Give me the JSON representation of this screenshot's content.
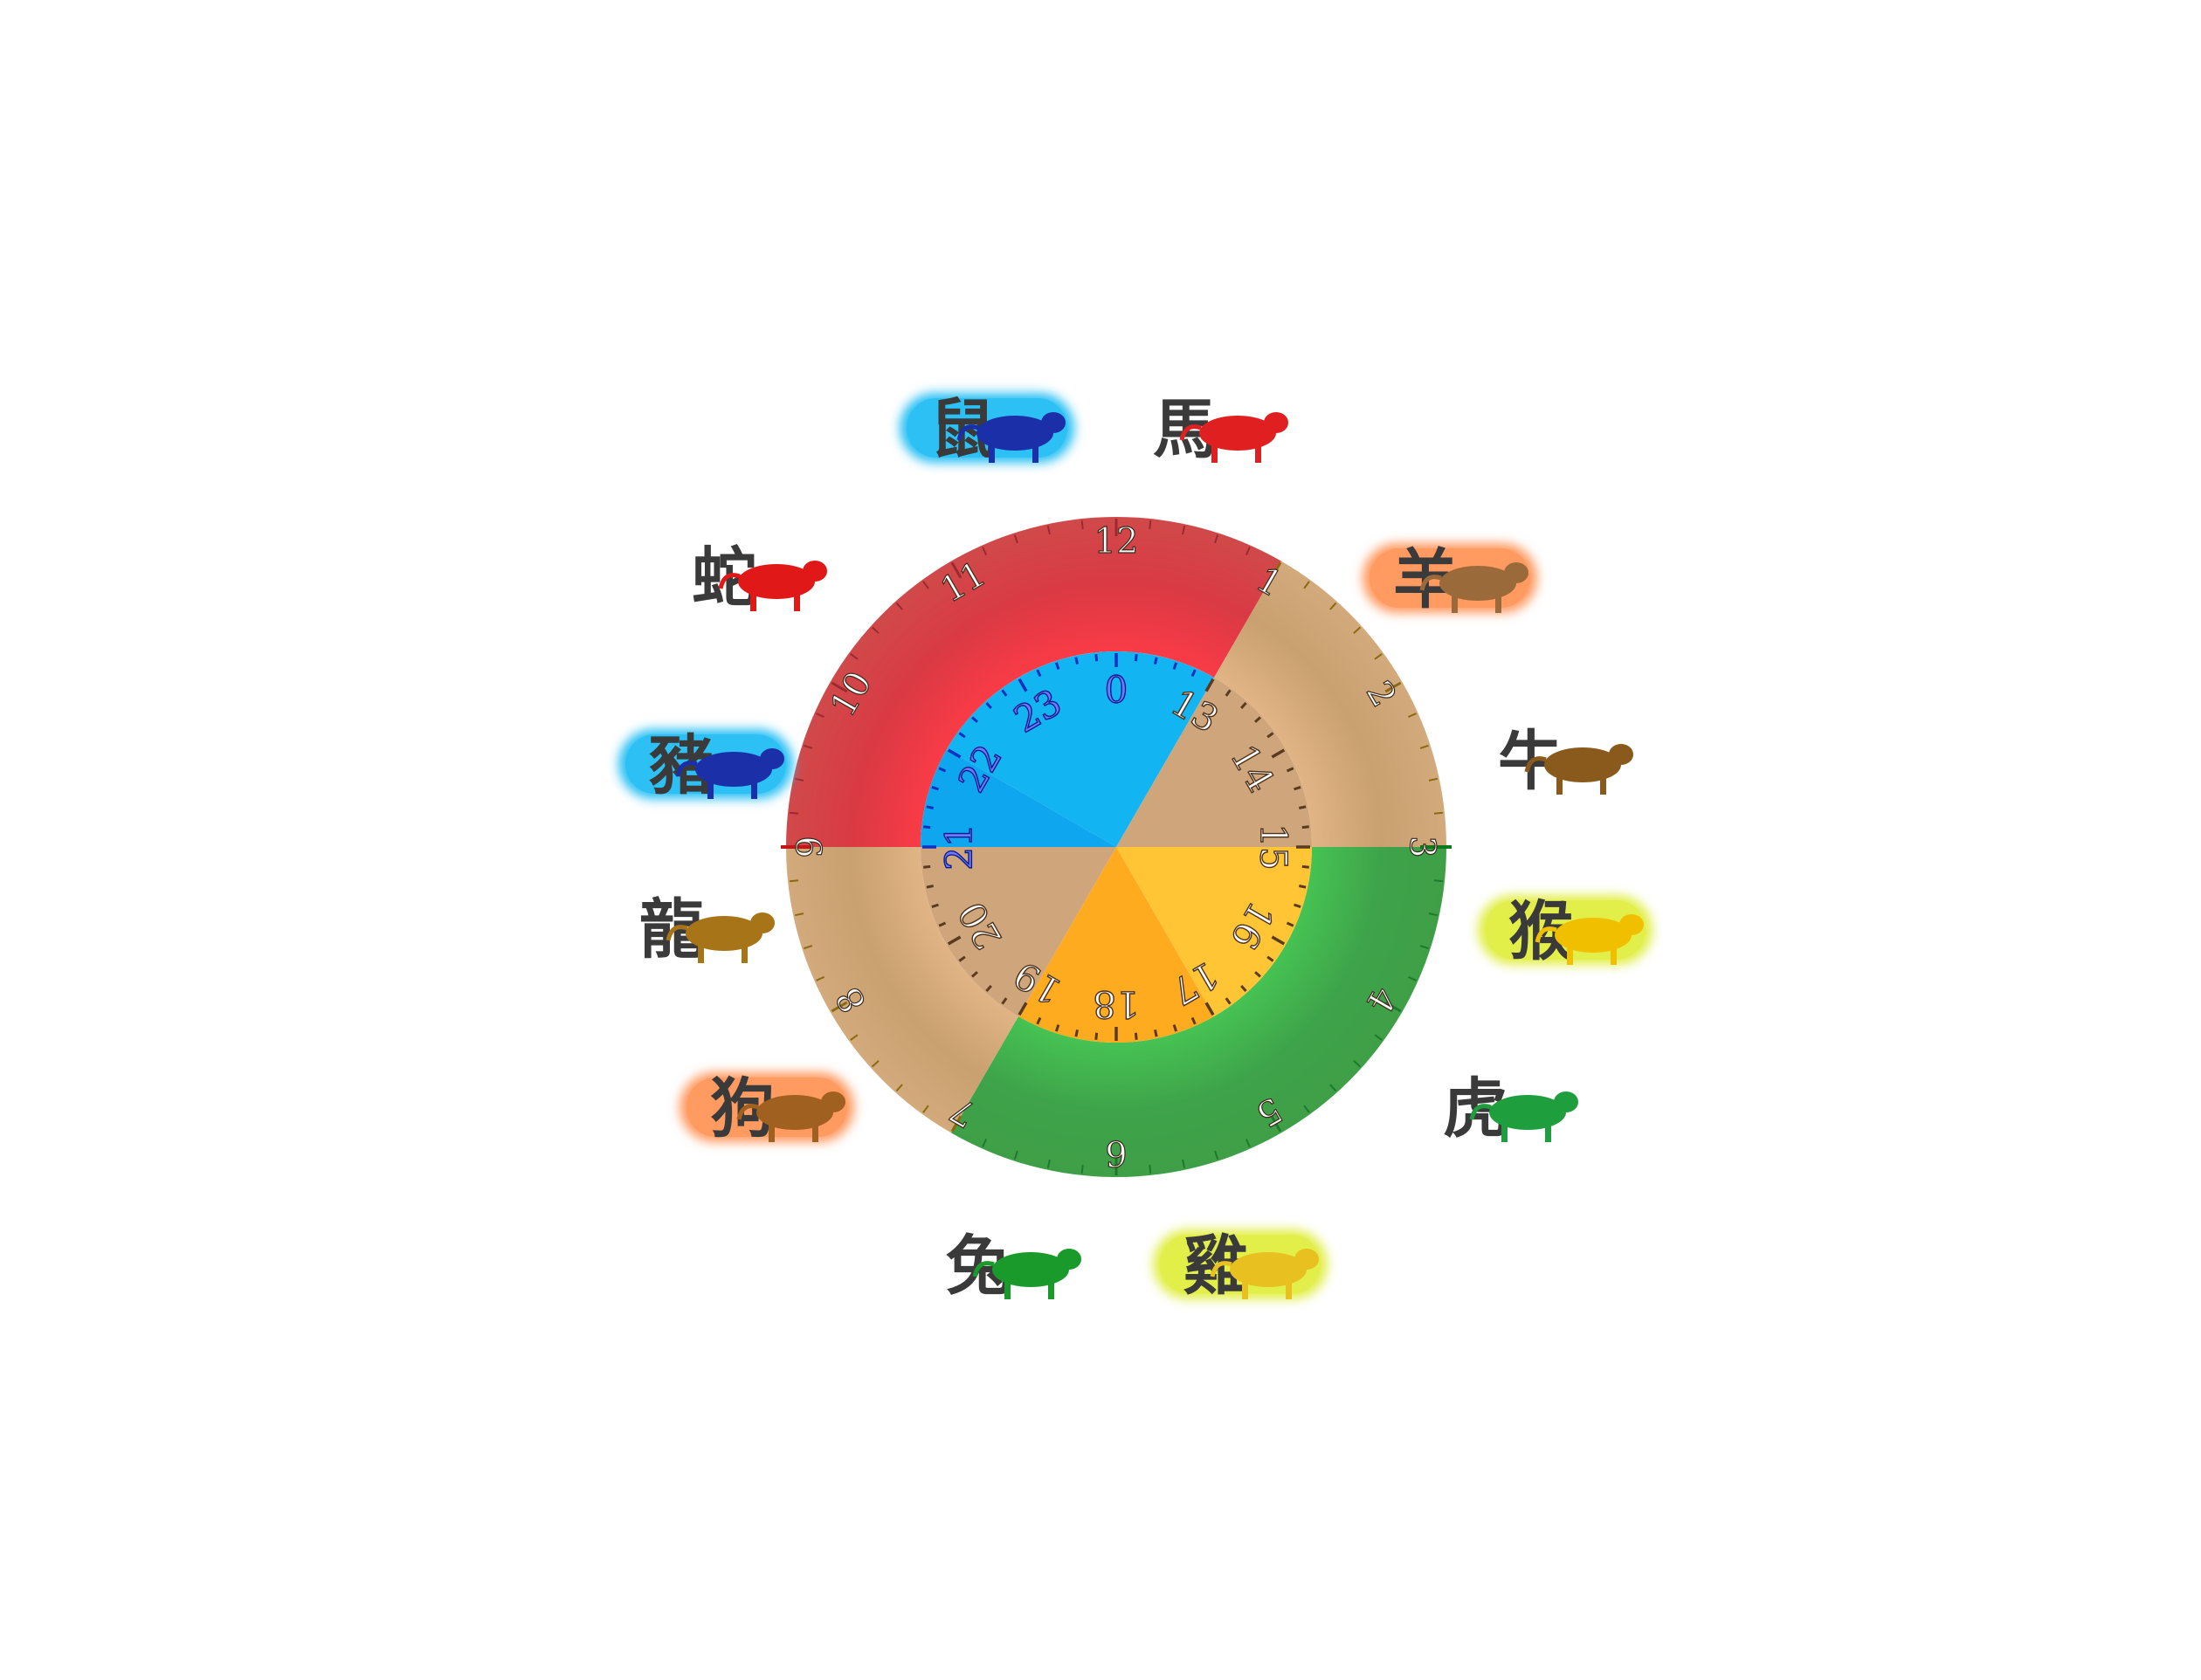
{
  "outer_numbers": [
    "12",
    "1",
    "2",
    "3",
    "4",
    "5",
    "6",
    "7",
    "8",
    "9",
    "10",
    "11"
  ],
  "inner_numbers": [
    "0",
    "13",
    "14",
    "15",
    "16",
    "17",
    "18",
    "19",
    "20",
    "21",
    "22",
    "23"
  ],
  "colors": {
    "red": "#d93a44",
    "tan": "#c9a070",
    "green": "#3ea34a",
    "inner_blue": "#12b4f2",
    "inner_tan": "#cfa57c",
    "inner_orange": "#ffba2a",
    "badge_blue": "#2cc0f4",
    "badge_orange": "#ff9a60",
    "badge_yellow": "#e2ee4a"
  },
  "zodiac": [
    {
      "char": "鼠",
      "animal": "rat-icon",
      "animal_color": "#1b2fa8",
      "badge": "blue"
    },
    {
      "char": "馬",
      "animal": "horse-icon",
      "animal_color": "#e02020",
      "badge": "none"
    },
    {
      "char": "羊",
      "animal": "goat-icon",
      "animal_color": "#9a6a3a",
      "badge": "orange"
    },
    {
      "char": "牛",
      "animal": "ox-icon",
      "animal_color": "#8a5a1c",
      "badge": "none"
    },
    {
      "char": "猴",
      "animal": "monkey-icon",
      "animal_color": "#f0c000",
      "badge": "yellow"
    },
    {
      "char": "虎",
      "animal": "tiger-icon",
      "animal_color": "#1e9e3c",
      "badge": "none"
    },
    {
      "char": "雞",
      "animal": "rooster-icon",
      "animal_color": "#e8c020",
      "badge": "yellow"
    },
    {
      "char": "兔",
      "animal": "rabbit-icon",
      "animal_color": "#1a9a2a",
      "badge": "none"
    },
    {
      "char": "狗",
      "animal": "dog-icon",
      "animal_color": "#a06020",
      "badge": "orange"
    },
    {
      "char": "龍",
      "animal": "dragon-icon",
      "animal_color": "#a87418",
      "badge": "none"
    },
    {
      "char": "豬",
      "animal": "pig-icon",
      "animal_color": "#1b2fa8",
      "badge": "blue"
    },
    {
      "char": "蛇",
      "animal": "snake-icon",
      "animal_color": "#e01818",
      "badge": "none"
    }
  ]
}
